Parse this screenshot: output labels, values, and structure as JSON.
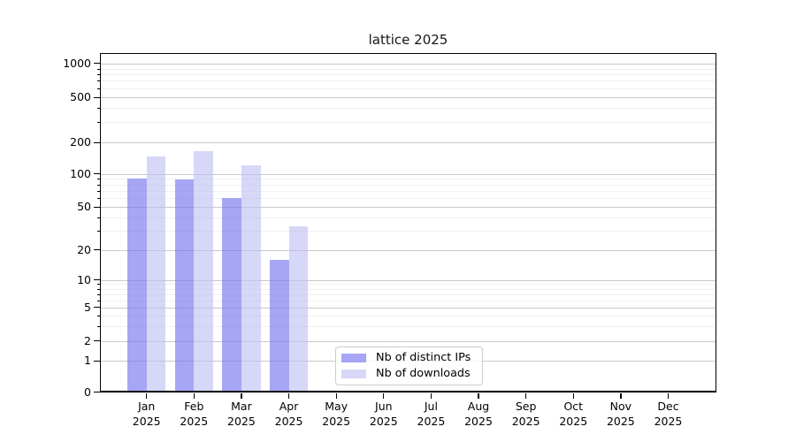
{
  "chart_data": {
    "type": "bar",
    "title": "lattice 2025",
    "year_label": "2025",
    "categories": [
      "Jan",
      "Feb",
      "Mar",
      "Apr",
      "May",
      "Jun",
      "Jul",
      "Aug",
      "Sep",
      "Oct",
      "Nov",
      "Dec"
    ],
    "series": [
      {
        "name": "Nb of distinct IPs",
        "color": "#7070ee",
        "values": [
          91,
          89,
          60,
          16,
          null,
          null,
          null,
          null,
          null,
          null,
          null,
          null
        ]
      },
      {
        "name": "Nb of downloads",
        "color": "#bebef3",
        "values": [
          147,
          163,
          120,
          33,
          null,
          null,
          null,
          null,
          null,
          null,
          null,
          null
        ]
      }
    ],
    "yscale": "symlog",
    "yticks": [
      0,
      1,
      2,
      5,
      10,
      20,
      50,
      100,
      200,
      500,
      1000
    ],
    "yminorticks": [
      3,
      4,
      6,
      7,
      8,
      9,
      30,
      40,
      60,
      70,
      80,
      90,
      300,
      400,
      600,
      700,
      800,
      900
    ],
    "ylim": [
      0,
      1250
    ],
    "xlabel": "",
    "ylabel": "",
    "grid": true,
    "legend_position": "lower-center-inside",
    "colors": {
      "grid_major": "#c9c9c9",
      "grid_minor": "#f0f0f0",
      "spine": "#000000",
      "background": "#ffffff"
    }
  }
}
